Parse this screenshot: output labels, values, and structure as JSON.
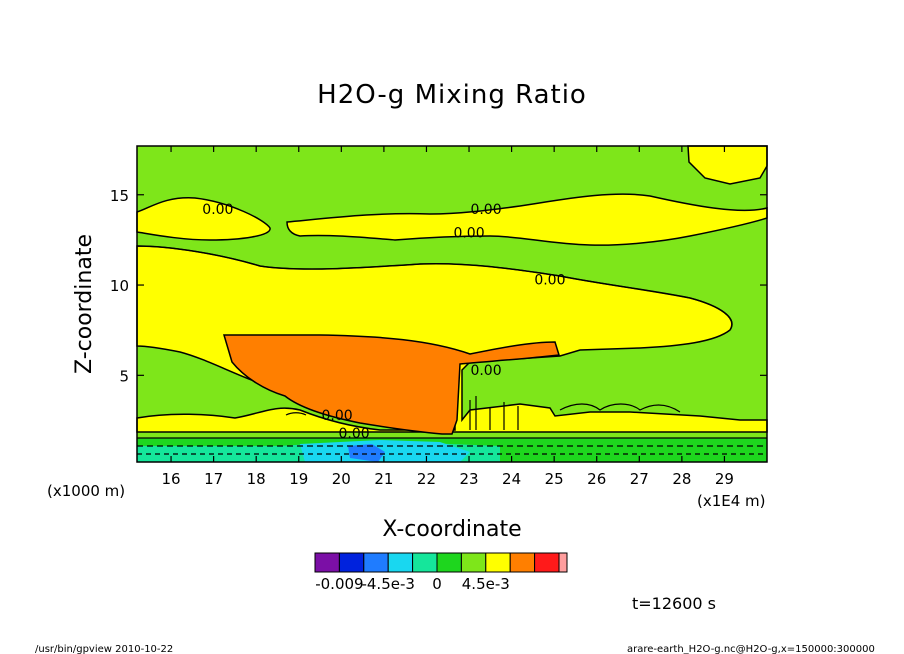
{
  "chart_data": {
    "type": "contour",
    "title": "H2O-g Mixing Ratio",
    "xlabel": "X-coordinate",
    "ylabel": "Z-coordinate",
    "x_unit_left": "(x1000 m)",
    "x_unit_right": "(x1E4 m)",
    "xlim": [
      15.2,
      30.0
    ],
    "ylim": [
      0.2,
      17.7
    ],
    "x_ticks": [
      16,
      17,
      18,
      19,
      20,
      21,
      22,
      23,
      24,
      25,
      26,
      27,
      28,
      29
    ],
    "y_ticks": [
      5,
      10,
      15
    ],
    "contour_labels": [
      {
        "text": "0.00",
        "x": 17.1,
        "z": 14.2
      },
      {
        "text": "0.00",
        "x": 23.4,
        "z": 14.2
      },
      {
        "text": "0.00",
        "x": 23.0,
        "z": 12.9
      },
      {
        "text": "0.00",
        "x": 24.9,
        "z": 10.3
      },
      {
        "text": "0.00",
        "x": 23.4,
        "z": 5.3
      },
      {
        "text": "0.00",
        "x": 19.9,
        "z": 2.8
      },
      {
        "text": "0.00",
        "x": 20.3,
        "z": 1.8
      }
    ],
    "colorbar": {
      "colors": [
        "#7b0fa6",
        "#0022dd",
        "#1f7cff",
        "#19d7f0",
        "#15e69b",
        "#1ed61e",
        "#7ee61a",
        "#ffff00",
        "#ff7f00",
        "#ff1a1a",
        "#ff9e9e"
      ],
      "tick_labels": [
        {
          "label": "-0.009",
          "at_box": 1
        },
        {
          "label": "-4.5e-3",
          "at_box": 3
        },
        {
          "label": "0",
          "at_box": 5
        },
        {
          "label": "4.5e-3",
          "at_box": 7
        }
      ]
    },
    "time_label": "t=12600 s",
    "footer_left": "/usr/bin/gpview  2010-10-22",
    "footer_right": "arare-earth_H2O-g.nc@H2O-g,x=150000:300000"
  }
}
